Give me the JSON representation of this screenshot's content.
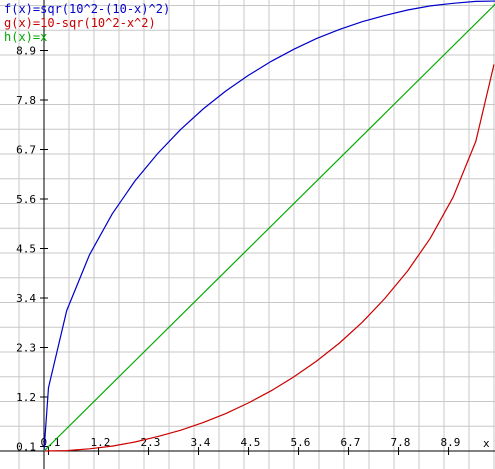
{
  "chart_data": {
    "type": "line",
    "title": "",
    "xlabel": "x",
    "ylabel": "",
    "xlim": [
      -0.1,
      10.0
    ],
    "ylim": [
      0.0,
      10.0
    ],
    "grid": true,
    "legend_position": "top-left",
    "x_ticks": [
      0.1,
      1.2,
      2.3,
      3.4,
      4.5,
      5.6,
      6.7,
      7.8,
      8.9
    ],
    "y_ticks": [
      0.1,
      1.2,
      2.3,
      3.4,
      4.5,
      5.6,
      6.7,
      7.8,
      8.9
    ],
    "axis_label_x": "x",
    "series": [
      {
        "name": "f(x)=sqr(10^2-(10-x)^2)",
        "color": "#0000cc",
        "x": [
          0,
          0.1,
          0.5,
          1,
          1.5,
          2,
          2.5,
          3,
          3.5,
          4,
          4.5,
          5,
          5.5,
          6,
          6.5,
          7,
          7.5,
          8,
          8.5,
          9,
          9.5,
          10
        ],
        "y": [
          0,
          1.41,
          3.12,
          4.36,
          5.27,
          6.0,
          6.61,
          7.14,
          7.6,
          8.0,
          8.35,
          8.66,
          8.93,
          9.17,
          9.37,
          9.54,
          9.68,
          9.8,
          9.89,
          9.95,
          9.99,
          10.0
        ]
      },
      {
        "name": "g(x)=10-sqr(10^2-x^2)",
        "color": "#cc0000",
        "x": [
          0,
          0.5,
          1,
          1.5,
          2,
          2.5,
          3,
          3.5,
          4,
          4.5,
          5,
          5.5,
          6,
          6.5,
          7,
          7.5,
          8,
          8.5,
          9,
          9.5,
          9.9
        ],
        "y": [
          0,
          0.01,
          0.05,
          0.11,
          0.2,
          0.32,
          0.46,
          0.63,
          0.83,
          1.07,
          1.34,
          1.65,
          2.0,
          2.4,
          2.86,
          3.39,
          4.0,
          4.73,
          5.64,
          6.88,
          8.59
        ]
      },
      {
        "name": "h(x)=x",
        "color": "#00aa00",
        "x": [
          0,
          10
        ],
        "y": [
          0,
          10
        ]
      }
    ]
  }
}
